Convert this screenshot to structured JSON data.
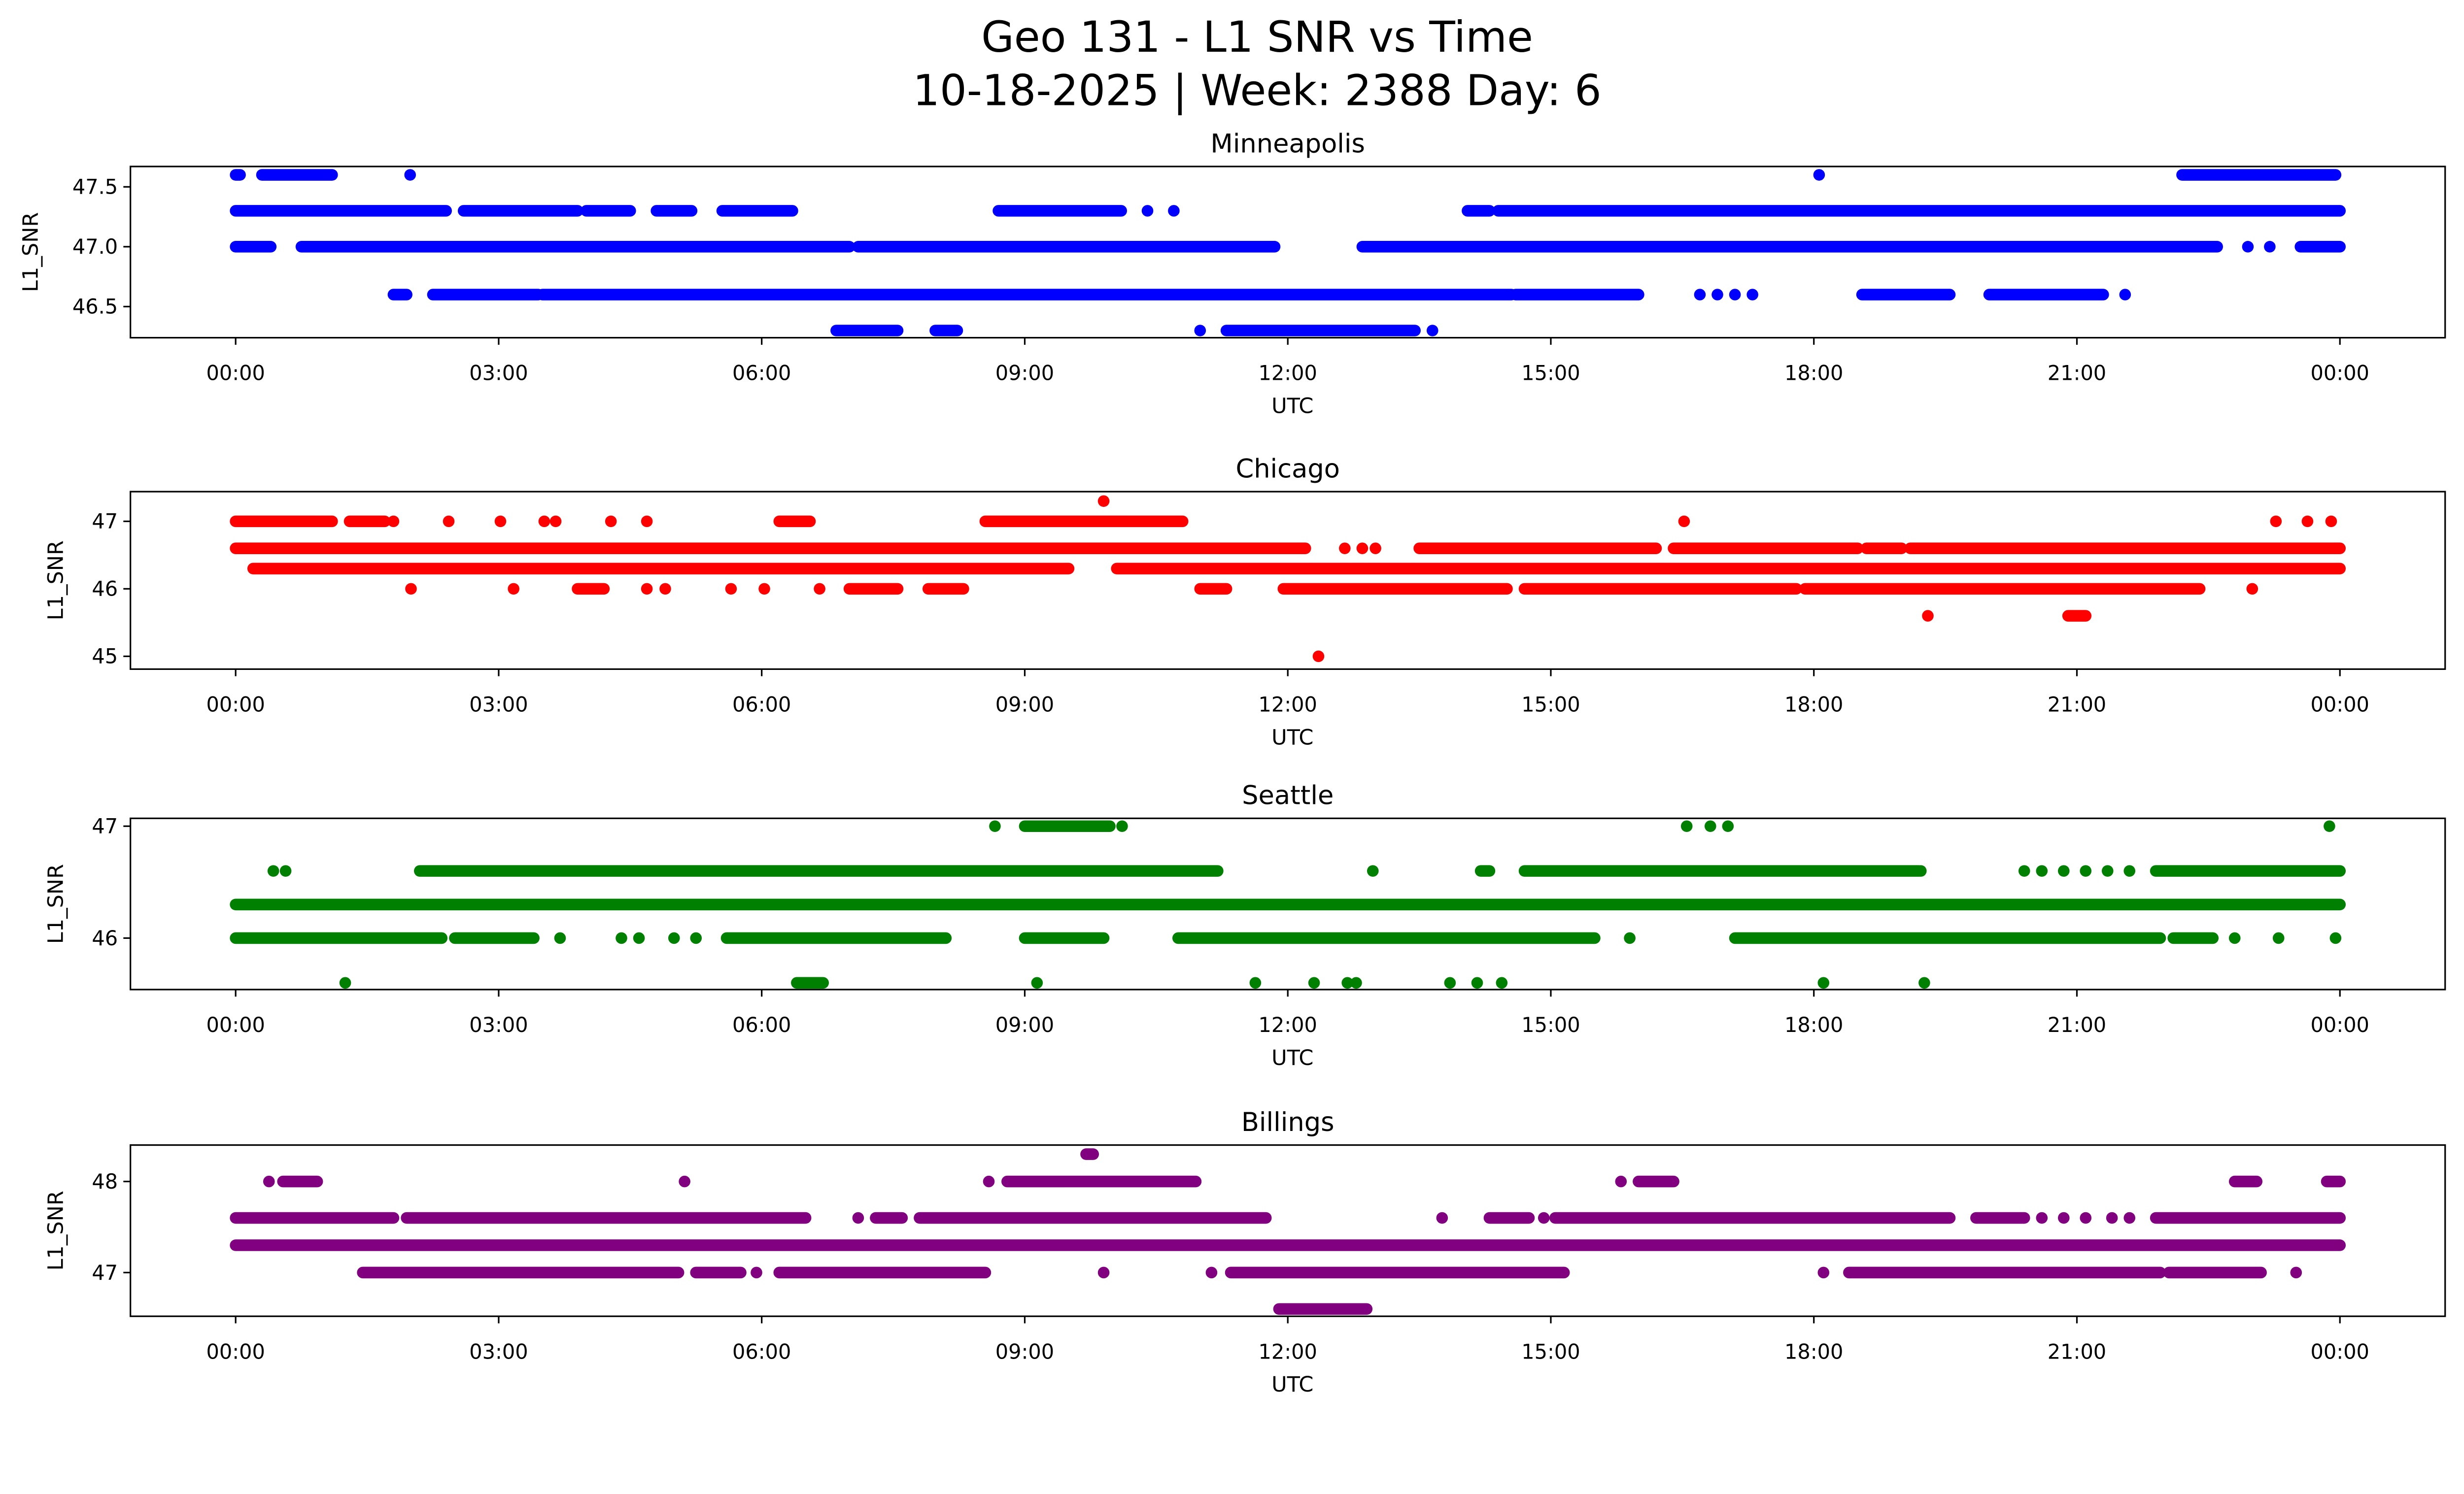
{
  "title": {
    "line1": "Geo 131 - L1 SNR vs Time",
    "line2": "10-18-2025 | Week: 2388 Day: 6"
  },
  "chart_data": [
    {
      "type": "scatter",
      "title": "Minneapolis",
      "xlabel": "UTC",
      "ylabel": "L1_SNR",
      "color": "#0000ff",
      "x_units": "hours UTC",
      "xlim": [
        -1.2,
        25.2
      ],
      "xticks": [
        0,
        3,
        6,
        9,
        12,
        15,
        18,
        21,
        24
      ],
      "xtick_labels": [
        "00:00",
        "03:00",
        "06:00",
        "09:00",
        "12:00",
        "15:00",
        "18:00",
        "21:00",
        "00:00"
      ],
      "ylim": [
        46.24,
        47.67
      ],
      "yticks": [
        46.5,
        47.0,
        47.5
      ],
      "ytick_labels": [
        "46.5",
        "47.0",
        "47.5"
      ],
      "levels": [
        {
          "y": 47.6,
          "runs": [
            [
              0,
              0.05
            ],
            [
              0.3,
              1.1
            ],
            [
              22.2,
              23.95
            ]
          ],
          "points": [
            1.99,
            18.06
          ]
        },
        {
          "y": 47.3,
          "runs": [
            [
              0,
              2.4
            ],
            [
              2.6,
              3.9
            ],
            [
              4.0,
              4.5
            ],
            [
              4.8,
              5.2
            ],
            [
              5.55,
              6.35
            ],
            [
              8.7,
              10.1
            ],
            [
              14.05,
              14.3
            ],
            [
              14.4,
              24
            ]
          ],
          "points": [
            10.4,
            10.7
          ]
        },
        {
          "y": 47.0,
          "runs": [
            [
              0,
              0.4
            ],
            [
              0.75,
              7.0
            ],
            [
              7.1,
              11.85
            ],
            [
              12.85,
              22.6
            ],
            [
              23.55,
              24
            ]
          ],
          "points": [
            22.95,
            23.2
          ]
        },
        {
          "y": 46.6,
          "runs": [
            [
              1.8,
              1.95
            ],
            [
              2.25,
              3.45
            ],
            [
              3.5,
              14.55
            ],
            [
              14.6,
              16.0
            ],
            [
              18.55,
              19.55
            ],
            [
              20.0,
              21.3
            ]
          ],
          "points": [
            16.7,
            16.9,
            17.1,
            17.3,
            21.55
          ]
        },
        {
          "y": 46.3,
          "runs": [
            [
              6.85,
              7.55
            ],
            [
              7.98,
              8.23
            ],
            [
              11.3,
              13.45
            ]
          ],
          "points": [
            11.0,
            13.65
          ]
        }
      ]
    },
    {
      "type": "scatter",
      "title": "Chicago",
      "xlabel": "UTC",
      "ylabel": "L1_SNR",
      "color": "#ff0000",
      "x_units": "hours UTC",
      "xlim": [
        -1.2,
        25.2
      ],
      "xticks": [
        0,
        3,
        6,
        9,
        12,
        15,
        18,
        21,
        24
      ],
      "xtick_labels": [
        "00:00",
        "03:00",
        "06:00",
        "09:00",
        "12:00",
        "15:00",
        "18:00",
        "21:00",
        "00:00"
      ],
      "ylim": [
        44.81,
        47.44
      ],
      "yticks": [
        45,
        46,
        47
      ],
      "ytick_labels": [
        "45",
        "46",
        "47"
      ],
      "levels": [
        {
          "y": 47.3,
          "runs": [],
          "points": [
            9.9
          ]
        },
        {
          "y": 47.0,
          "runs": [
            [
              0,
              1.1
            ],
            [
              1.3,
              1.7
            ],
            [
              6.2,
              6.55
            ],
            [
              8.55,
              10.8
            ]
          ],
          "points": [
            1.8,
            2.43,
            3.02,
            3.52,
            3.65,
            4.28,
            4.69,
            16.52,
            23.27,
            23.63,
            23.9
          ]
        },
        {
          "y": 46.6,
          "runs": [
            [
              0,
              12.2
            ],
            [
              13.5,
              16.2
            ],
            [
              16.4,
              18.5
            ],
            [
              18.6,
              19.0
            ],
            [
              19.1,
              24
            ]
          ],
          "points": [
            12.65,
            12.85,
            13.0
          ]
        },
        {
          "y": 46.3,
          "runs": [
            [
              0.2,
              9.5
            ],
            [
              10.05,
              24
            ]
          ],
          "points": []
        },
        {
          "y": 46.0,
          "runs": [
            [
              3.9,
              4.2
            ],
            [
              7.0,
              7.55
            ],
            [
              7.9,
              8.3
            ],
            [
              11.0,
              11.3
            ],
            [
              11.95,
              14.5
            ],
            [
              14.7,
              17.8
            ],
            [
              17.9,
              22.4
            ]
          ],
          "points": [
            2.0,
            3.17,
            4.69,
            4.9,
            5.65,
            6.03,
            6.66,
            23.0
          ]
        },
        {
          "y": 45.6,
          "runs": [
            [
              20.9,
              21.1
            ]
          ],
          "points": [
            19.3
          ]
        },
        {
          "y": 45.0,
          "runs": [],
          "points": [
            12.35
          ]
        }
      ]
    },
    {
      "type": "scatter",
      "title": "Seattle",
      "xlabel": "UTC",
      "ylabel": "L1_SNR",
      "color": "#008000",
      "x_units": "hours UTC",
      "xlim": [
        -1.2,
        25.2
      ],
      "xticks": [
        0,
        3,
        6,
        9,
        12,
        15,
        18,
        21,
        24
      ],
      "xtick_labels": [
        "00:00",
        "03:00",
        "06:00",
        "09:00",
        "12:00",
        "15:00",
        "18:00",
        "21:00",
        "00:00"
      ],
      "ylim": [
        45.54,
        47.07
      ],
      "yticks": [
        46,
        47
      ],
      "ytick_labels": [
        "46",
        "47"
      ],
      "levels": [
        {
          "y": 47.0,
          "runs": [
            [
              9.0,
              9.97
            ]
          ],
          "points": [
            8.66,
            10.11,
            16.55,
            16.82,
            17.02,
            23.88
          ]
        },
        {
          "y": 46.6,
          "runs": [
            [
              2.1,
              11.2
            ],
            [
              14.2,
              14.3
            ],
            [
              14.7,
              19.2
            ],
            [
              21.9,
              24
            ]
          ],
          "points": [
            0.43,
            0.57,
            12.97,
            19.22,
            20.4,
            20.6,
            20.85,
            21.1,
            21.35,
            21.6
          ]
        },
        {
          "y": 46.3,
          "runs": [
            [
              0,
              24
            ]
          ],
          "points": []
        },
        {
          "y": 46.0,
          "runs": [
            [
              0,
              2.35
            ],
            [
              2.5,
              3.4
            ],
            [
              5.6,
              8.1
            ],
            [
              9.0,
              9.9
            ],
            [
              10.75,
              15.5
            ],
            [
              17.1,
              21.95
            ],
            [
              22.1,
              22.55
            ]
          ],
          "points": [
            3.7,
            4.4,
            4.6,
            5.0,
            5.25,
            15.9,
            22.8,
            23.3,
            23.95
          ]
        },
        {
          "y": 45.6,
          "runs": [
            [
              6.4,
              6.7
            ]
          ],
          "points": [
            1.25,
            9.14,
            11.63,
            12.3,
            12.68,
            12.78,
            13.85,
            14.16,
            14.44,
            18.11,
            19.26
          ]
        }
      ]
    },
    {
      "type": "scatter",
      "title": "Billings",
      "xlabel": "UTC",
      "ylabel": "L1_SNR",
      "color": "#800080",
      "x_units": "hours UTC",
      "xlim": [
        -1.2,
        25.2
      ],
      "xticks": [
        0,
        3,
        6,
        9,
        12,
        15,
        18,
        21,
        24
      ],
      "xtick_labels": [
        "00:00",
        "03:00",
        "06:00",
        "09:00",
        "12:00",
        "15:00",
        "18:00",
        "21:00",
        "00:00"
      ],
      "ylim": [
        46.52,
        48.4
      ],
      "yticks": [
        47,
        48
      ],
      "ytick_labels": [
        "47",
        "48"
      ],
      "levels": [
        {
          "y": 48.3,
          "runs": [
            [
              9.7,
              9.78
            ]
          ],
          "points": []
        },
        {
          "y": 48.0,
          "runs": [
            [
              0.54,
              0.93
            ],
            [
              8.8,
              10.95
            ],
            [
              16.0,
              16.4
            ],
            [
              22.8,
              23.05
            ],
            [
              23.85,
              24
            ]
          ],
          "points": [
            0.38,
            5.12,
            8.59,
            15.8
          ]
        },
        {
          "y": 47.6,
          "runs": [
            [
              0,
              1.8
            ],
            [
              1.95,
              6.5
            ],
            [
              7.3,
              7.6
            ],
            [
              7.8,
              11.75
            ],
            [
              14.3,
              14.75
            ],
            [
              15.05,
              19.55
            ],
            [
              19.85,
              20.4
            ],
            [
              21.9,
              24
            ]
          ],
          "points": [
            7.1,
            13.76,
            14.92,
            20.6,
            20.85,
            21.1,
            21.4,
            21.6
          ]
        },
        {
          "y": 47.3,
          "runs": [
            [
              0,
              24
            ]
          ],
          "points": []
        },
        {
          "y": 47.0,
          "runs": [
            [
              1.45,
              5.05
            ],
            [
              5.25,
              5.76
            ],
            [
              6.2,
              8.55
            ],
            [
              11.35,
              15.15
            ],
            [
              18.4,
              21.95
            ],
            [
              22.05,
              23.1
            ]
          ],
          "points": [
            5.94,
            9.9,
            11.13,
            18.11,
            23.5
          ]
        },
        {
          "y": 46.6,
          "runs": [
            [
              11.9,
              12.9
            ]
          ],
          "points": []
        }
      ]
    }
  ]
}
